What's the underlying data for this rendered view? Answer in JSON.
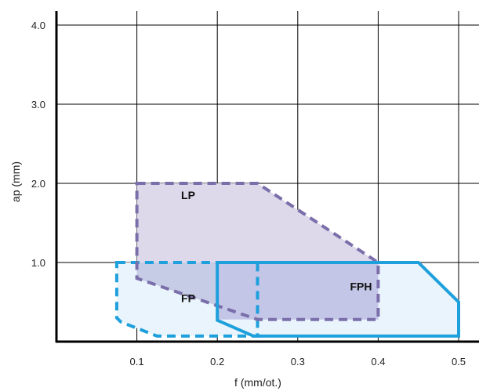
{
  "chart_data": {
    "type": "area",
    "xlabel": "f (mm/ot.)",
    "ylabel": "ap (mm)",
    "xlim": [
      0,
      0.5
    ],
    "ylim": [
      0,
      4.0
    ],
    "x_ticks": [
      "0.1",
      "0.2",
      "0.3",
      "0.4",
      "0.5"
    ],
    "y_ticks": [
      "1.0",
      "2.0",
      "3.0",
      "4.0"
    ],
    "grid": true,
    "series": [
      {
        "name": "FP",
        "line_style": "dashed",
        "stroke_color": "#1ea0dc",
        "fill_color": "#eaf4fc",
        "points": [
          [
            0.075,
            1.0
          ],
          [
            0.25,
            1.0
          ],
          [
            0.25,
            0.07
          ],
          [
            0.125,
            0.07
          ],
          [
            0.08,
            0.25
          ],
          [
            0.075,
            0.3
          ]
        ]
      },
      {
        "name": "LP",
        "line_style": "dashed",
        "stroke_color": "#7a6faa",
        "fill_color": "#ddd8ea",
        "points": [
          [
            0.1,
            2.0
          ],
          [
            0.25,
            2.0
          ],
          [
            0.4,
            1.0
          ],
          [
            0.4,
            0.28
          ],
          [
            0.25,
            0.28
          ],
          [
            0.1,
            0.8
          ]
        ]
      },
      {
        "name": "FPH",
        "line_style": "solid",
        "stroke_color": "#1ea0dc",
        "fill_color": "#eaf4fc",
        "points": [
          [
            0.2,
            1.0
          ],
          [
            0.45,
            1.0
          ],
          [
            0.5,
            0.5
          ],
          [
            0.5,
            0.07
          ],
          [
            0.245,
            0.07
          ],
          [
            0.2,
            0.27
          ]
        ]
      }
    ],
    "labels": [
      {
        "text": "LP",
        "x": 0.155,
        "y": 1.8
      },
      {
        "text": "FP",
        "x": 0.155,
        "y": 0.5
      },
      {
        "text": "FPH",
        "x": 0.365,
        "y": 0.65
      }
    ],
    "colors": {
      "axis": "#000000",
      "grid": "#000000",
      "lp_overlap_fill": "#c6cbe6",
      "fph_overlap_fill": "#c4c6e8"
    }
  }
}
